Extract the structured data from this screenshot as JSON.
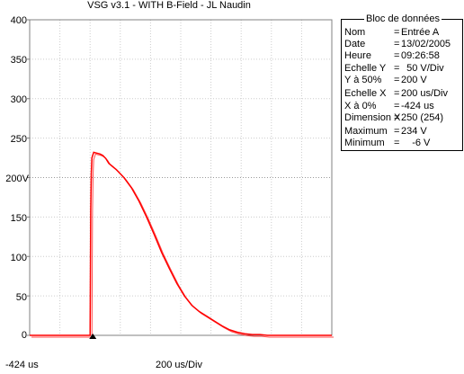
{
  "window": {
    "title": "VSG v3.1 - WITH B-Field - JL Naudin"
  },
  "plot": {
    "y_ticks": [
      "400",
      "350",
      "300",
      "250",
      "200V",
      "150",
      "100",
      "50",
      "0"
    ],
    "x_offset_label": "-424 us",
    "x_scale_label": "200 us/Div",
    "trace_color": "#ff0000",
    "grid_color": "#cccccc",
    "trigger_marker_color": "#000000"
  },
  "data_block": {
    "title": "Bloc de données",
    "rows": [
      {
        "key": "Nom",
        "value": "Entrée A"
      },
      {
        "key": "Date",
        "value": "13/02/2005"
      },
      {
        "key": "Heure",
        "value": "09:26:58"
      },
      {
        "key": "Echelle Y",
        "value": "  50 V/Div"
      },
      {
        "key": "Y à 50%",
        "value": "200 V"
      },
      {
        "key": "Echelle X",
        "value": "200 us/Div"
      },
      {
        "key": "X à 0%",
        "value": "-424 us"
      },
      {
        "key": "Dimension X",
        "value": "250 (254)"
      },
      {
        "key": "Maximum",
        "value": "234 V"
      },
      {
        "key": "Minimum",
        "value": "    -6 V"
      }
    ]
  },
  "chart_data": {
    "type": "line",
    "title": "VSG v3.1 - WITH B-Field - JL Naudin",
    "ylabel": "",
    "xlabel": "",
    "units": {
      "y": "V",
      "x": "us"
    },
    "ylim": [
      0,
      400
    ],
    "xlim_us": [
      -424,
      1576
    ],
    "y_tick_values": [
      0,
      50,
      100,
      150,
      200,
      250,
      300,
      350,
      400
    ],
    "grid": true,
    "series": [
      {
        "name": "Entrée A",
        "x_us": [
          -424,
          -300,
          -200,
          -100,
          -24,
          -20,
          -16,
          -12,
          0,
          20,
          40,
          60,
          80,
          100,
          150,
          200,
          250,
          300,
          350,
          400,
          450,
          500,
          550,
          600,
          650,
          700,
          750,
          800,
          850,
          900,
          950,
          1000,
          1050,
          1100,
          1150,
          1200,
          1300,
          1400,
          1500,
          1576
        ],
        "y_V": [
          0,
          0,
          0,
          0,
          0,
          160,
          205,
          225,
          232,
          231,
          230,
          228,
          224,
          218,
          210,
          200,
          187,
          170,
          150,
          128,
          105,
          85,
          66,
          50,
          38,
          30,
          24,
          18,
          12,
          7,
          4,
          2,
          1,
          1,
          0,
          0,
          0,
          0,
          0,
          0
        ]
      }
    ]
  }
}
